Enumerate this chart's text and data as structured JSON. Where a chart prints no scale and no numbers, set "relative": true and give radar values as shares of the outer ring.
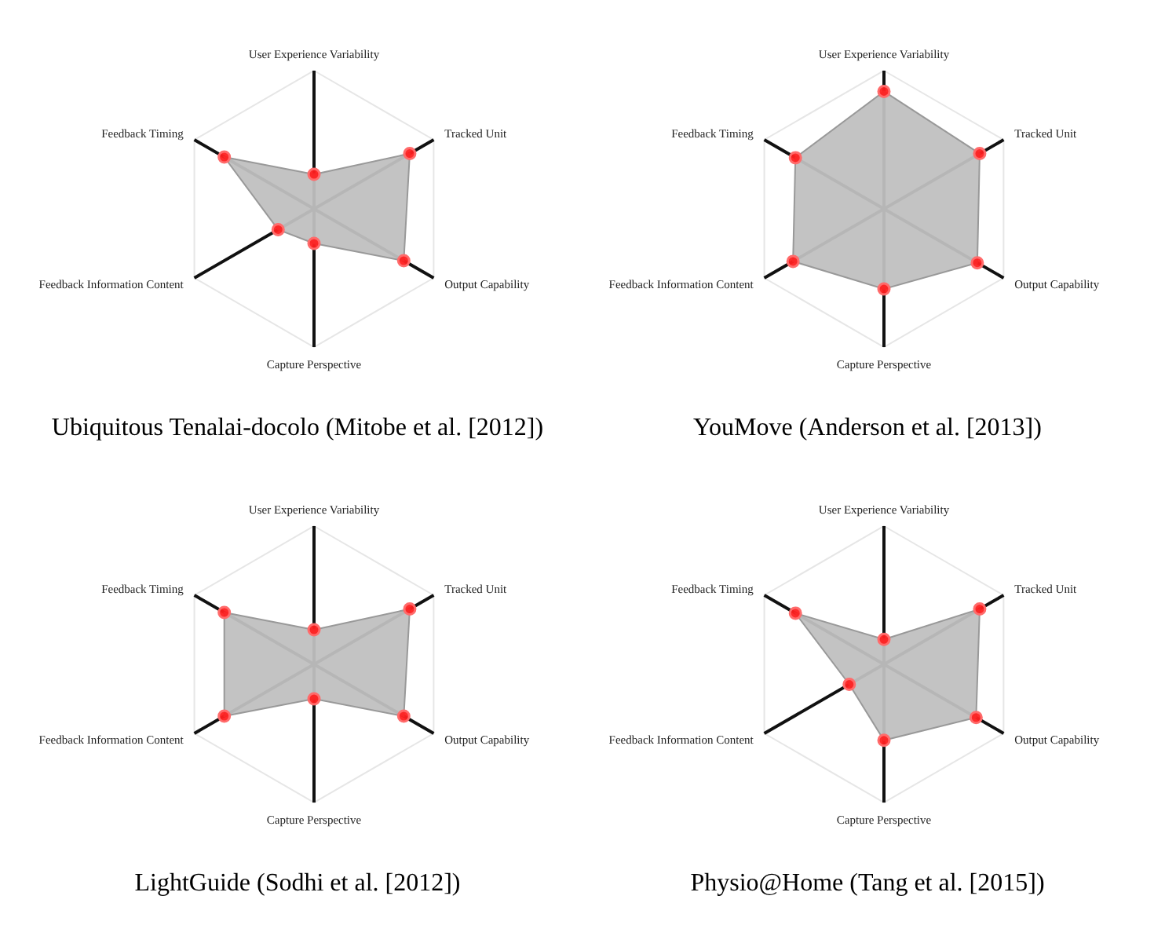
{
  "chart_data": [
    {
      "type": "radar",
      "title": "Ubiquitous Tenalai-docolo (Mitobe et al. [2012])",
      "categories": [
        "User Experience Variability",
        "Tracked Unit",
        "Output Capability",
        "Capture Perspective",
        "Feedback Information Content",
        "Feedback Timing"
      ],
      "relative": true,
      "marker": "circle",
      "series": [
        {
          "color": "#c0c0c0",
          "values": [
            0.25,
            0.8,
            0.75,
            0.25,
            0.3,
            0.75
          ]
        }
      ]
    },
    {
      "type": "radar",
      "title": "YouMove (Anderson et al. [2013])",
      "categories": [
        "User Experience Variability",
        "Tracked Unit",
        "Output Capability",
        "Capture Perspective",
        "Feedback Information Content",
        "Feedback Timing"
      ],
      "relative": true,
      "marker": "circle",
      "series": [
        {
          "color": "#c0c0c0",
          "values": [
            0.85,
            0.8,
            0.78,
            0.58,
            0.76,
            0.74
          ]
        }
      ]
    },
    {
      "type": "radar",
      "title": "LightGuide (Sodhi et al. [2012])",
      "categories": [
        "User Experience Variability",
        "Tracked Unit",
        "Output Capability",
        "Capture Perspective",
        "Feedback Information Content",
        "Feedback Timing"
      ],
      "relative": true,
      "marker": "circle",
      "series": [
        {
          "color": "#c0c0c0",
          "values": [
            0.25,
            0.8,
            0.75,
            0.25,
            0.75,
            0.75
          ]
        }
      ]
    },
    {
      "type": "radar",
      "title": "Physio@Home (Tang et al. [2015])",
      "categories": [
        "User Experience Variability",
        "Tracked Unit",
        "Output Capability",
        "Capture Perspective",
        "Feedback Information Content",
        "Feedback Timing"
      ],
      "relative": true,
      "marker": "circle",
      "series": [
        {
          "color": "#c0c0c0",
          "values": [
            0.18,
            0.8,
            0.77,
            0.55,
            0.29,
            0.74
          ]
        }
      ]
    }
  ]
}
